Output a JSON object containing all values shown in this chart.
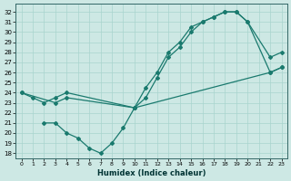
{
  "xlabel": "Humidex (Indice chaleur)",
  "xlim": [
    -0.5,
    23.5
  ],
  "ylim": [
    17.5,
    32.8
  ],
  "xticks": [
    0,
    1,
    2,
    3,
    4,
    5,
    6,
    7,
    8,
    9,
    10,
    11,
    12,
    13,
    14,
    15,
    16,
    17,
    18,
    19,
    20,
    21,
    22,
    23
  ],
  "yticks": [
    18,
    19,
    20,
    21,
    22,
    23,
    24,
    25,
    26,
    27,
    28,
    29,
    30,
    31,
    32
  ],
  "background_color": "#cde8e4",
  "grid_color": "#a8d4ce",
  "line_color": "#1a7a6e",
  "line1_x": [
    0,
    1,
    2,
    3,
    4,
    10,
    11,
    12,
    13,
    14,
    15,
    16,
    17,
    18,
    19,
    20,
    22,
    23
  ],
  "line1_y": [
    24,
    23.5,
    23,
    23.5,
    24,
    22.5,
    23.5,
    25.5,
    27.5,
    28.5,
    30,
    31,
    31.5,
    32,
    32,
    31,
    26,
    26.5
  ],
  "line2_x": [
    0,
    3,
    4,
    10,
    11,
    12,
    13,
    14,
    15,
    16,
    17,
    18,
    19,
    20,
    22,
    23
  ],
  "line2_y": [
    24,
    23,
    23.5,
    22.5,
    24.5,
    26,
    28,
    29,
    30.5,
    31,
    31.5,
    32,
    32,
    31,
    27.5,
    28
  ],
  "line3_x": [
    2,
    3,
    4,
    5,
    6,
    7,
    8,
    9,
    10,
    22,
    23
  ],
  "line3_y": [
    21,
    21,
    20,
    19.5,
    18.5,
    18,
    19,
    20.5,
    22.5,
    26,
    26.5
  ],
  "marker": "D",
  "markersize": 2.0,
  "linewidth": 0.9
}
